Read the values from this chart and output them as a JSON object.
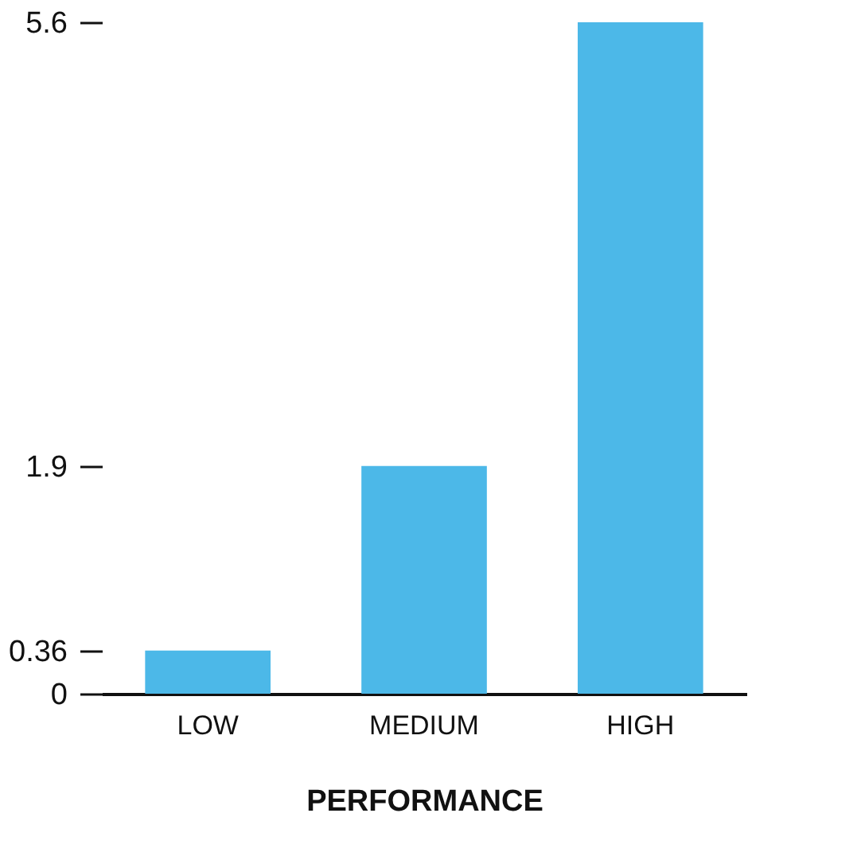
{
  "chart_data": {
    "type": "bar",
    "xlabel": "PERFORMANCE",
    "categories": [
      "LOW",
      "MEDIUM",
      "HIGH"
    ],
    "values": [
      0.36,
      1.9,
      5.6
    ],
    "color": "#4cb8e8",
    "ylim": [
      0,
      5.6
    ],
    "yticks": [
      0,
      0.36,
      1.9,
      5.6
    ],
    "grid": false
  }
}
